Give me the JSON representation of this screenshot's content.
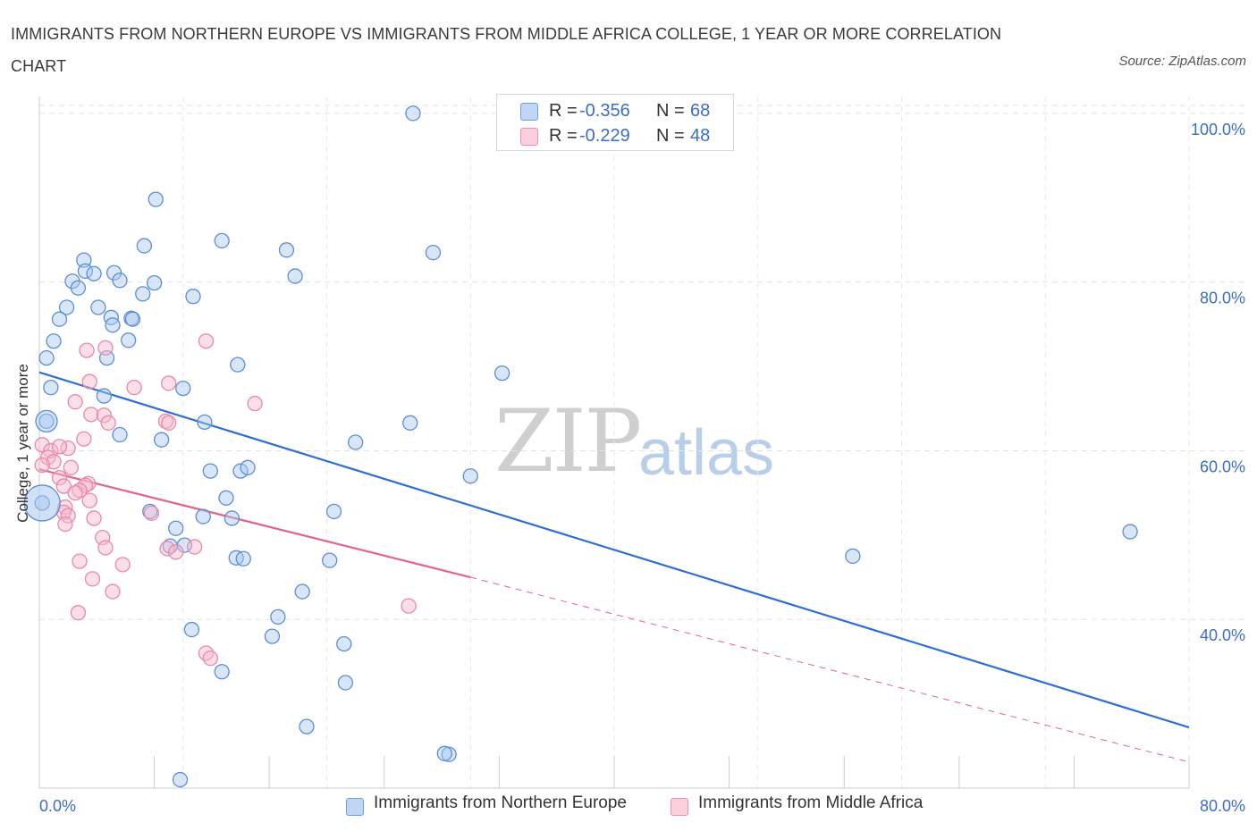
{
  "title": "IMMIGRANTS FROM NORTHERN EUROPE VS IMMIGRANTS FROM MIDDLE AFRICA COLLEGE, 1 YEAR OR MORE CORRELATION CHART",
  "source": "Source: ZipAtlas.com",
  "watermark": {
    "zip": "ZIP",
    "atlas": "atlas"
  },
  "legend": {
    "rows": [
      {
        "r_label": "R =",
        "r_value": "-0.356",
        "n_label": "N =",
        "n_value": "68",
        "color": "#a9c8f0"
      },
      {
        "r_label": "R =",
        "r_value": "-0.229",
        "n_label": "N =",
        "n_value": "48",
        "color": "#f7b8cb"
      }
    ]
  },
  "bottom_legend": {
    "series1": "Immigrants from Northern Europe",
    "series2": "Immigrants from Middle Africa"
  },
  "chart_data": {
    "type": "scatter",
    "title": "IMMIGRANTS FROM NORTHERN EUROPE VS IMMIGRANTS FROM MIDDLE AFRICA COLLEGE, 1 YEAR OR MORE CORRELATION CHART",
    "xlabel": "",
    "ylabel": "College, 1 year or more",
    "xlim": [
      0,
      80
    ],
    "ylim": [
      20,
      102
    ],
    "x_ticks": [
      {
        "value": 0,
        "label": "0.0%"
      },
      {
        "value": 80,
        "label": "80.0%"
      }
    ],
    "y_ticks": [
      {
        "value": 40,
        "label": "40.0%"
      },
      {
        "value": 60,
        "label": "60.0%"
      },
      {
        "value": 80,
        "label": "80.0%"
      },
      {
        "value": 100,
        "label": "100.0%"
      }
    ],
    "grid": true,
    "legend_position": "top-center",
    "colors": {
      "blue": "#6f9fd8",
      "blue_fill": "#a9c8f0",
      "blue_line": "#2e6fcf",
      "pink": "#ec8fad",
      "pink_fill": "#f7b8cb",
      "pink_line": "#e0648f",
      "axis_text": "#3a6fc4"
    },
    "series": [
      {
        "name": "Immigrants from Northern Europe",
        "R": -0.356,
        "N": 68,
        "points": [
          [
            26.0,
            100.0
          ],
          [
            8.1,
            89.8
          ],
          [
            12.7,
            84.9
          ],
          [
            7.3,
            84.3
          ],
          [
            17.2,
            83.8
          ],
          [
            27.4,
            83.5
          ],
          [
            3.1,
            82.6
          ],
          [
            3.2,
            81.3
          ],
          [
            5.2,
            81.1
          ],
          [
            3.8,
            81.0
          ],
          [
            17.8,
            80.7
          ],
          [
            2.3,
            80.1
          ],
          [
            5.6,
            80.2
          ],
          [
            8.0,
            79.9
          ],
          [
            2.7,
            79.3
          ],
          [
            7.2,
            78.6
          ],
          [
            10.7,
            78.3
          ],
          [
            1.9,
            77.0
          ],
          [
            4.1,
            77.0
          ],
          [
            1.4,
            75.6
          ],
          [
            5.0,
            75.8
          ],
          [
            6.4,
            75.7
          ],
          [
            6.5,
            75.6
          ],
          [
            5.1,
            74.9
          ],
          [
            1.0,
            73.0
          ],
          [
            6.2,
            73.1
          ],
          [
            4.7,
            71.0
          ],
          [
            13.8,
            70.2
          ],
          [
            32.2,
            69.2
          ],
          [
            0.8,
            67.5
          ],
          [
            10.0,
            67.4
          ],
          [
            4.5,
            66.5
          ],
          [
            0.5,
            63.5
          ],
          [
            11.5,
            63.4
          ],
          [
            25.8,
            63.3
          ],
          [
            5.6,
            61.9
          ],
          [
            8.5,
            61.3
          ],
          [
            11.9,
            57.6
          ],
          [
            14.0,
            57.6
          ],
          [
            13.0,
            54.4
          ],
          [
            0.2,
            53.8
          ],
          [
            7.7,
            52.8
          ],
          [
            20.5,
            52.8
          ],
          [
            11.4,
            52.2
          ],
          [
            13.4,
            52.0
          ],
          [
            75.9,
            50.4
          ],
          [
            9.5,
            50.8
          ],
          [
            9.1,
            48.7
          ],
          [
            10.1,
            48.8
          ],
          [
            56.6,
            47.5
          ],
          [
            13.7,
            47.3
          ],
          [
            14.2,
            47.2
          ],
          [
            20.2,
            47.0
          ],
          [
            18.3,
            43.3
          ],
          [
            16.6,
            40.3
          ],
          [
            10.6,
            38.8
          ],
          [
            16.2,
            38.0
          ],
          [
            21.2,
            37.1
          ],
          [
            12.7,
            33.8
          ],
          [
            21.3,
            32.5
          ],
          [
            18.6,
            27.3
          ],
          [
            28.5,
            24.0
          ],
          [
            28.2,
            24.1
          ],
          [
            9.8,
            21.0
          ],
          [
            0.5,
            71.0
          ],
          [
            14.5,
            58.0
          ],
          [
            22.0,
            61.0
          ],
          [
            30.0,
            57.0
          ]
        ]
      },
      {
        "name": "Immigrants from Middle Africa",
        "R": -0.229,
        "N": 48,
        "points": [
          [
            11.6,
            73.0
          ],
          [
            4.6,
            72.2
          ],
          [
            3.3,
            71.9
          ],
          [
            3.5,
            68.2
          ],
          [
            9.0,
            68.0
          ],
          [
            6.6,
            67.5
          ],
          [
            15.0,
            65.6
          ],
          [
            2.5,
            65.8
          ],
          [
            3.6,
            64.3
          ],
          [
            4.5,
            64.2
          ],
          [
            8.8,
            63.5
          ],
          [
            9.0,
            63.3
          ],
          [
            4.8,
            63.3
          ],
          [
            3.1,
            61.4
          ],
          [
            0.2,
            60.7
          ],
          [
            2.0,
            60.3
          ],
          [
            0.8,
            60.0
          ],
          [
            1.4,
            60.5
          ],
          [
            0.6,
            59.2
          ],
          [
            1.0,
            58.7
          ],
          [
            0.2,
            58.3
          ],
          [
            1.4,
            56.8
          ],
          [
            3.4,
            56.1
          ],
          [
            3.2,
            55.9
          ],
          [
            1.7,
            55.8
          ],
          [
            2.8,
            55.3
          ],
          [
            2.5,
            55.0
          ],
          [
            3.5,
            54.1
          ],
          [
            1.8,
            53.3
          ],
          [
            1.7,
            52.7
          ],
          [
            7.8,
            52.6
          ],
          [
            2.0,
            52.3
          ],
          [
            3.8,
            52.0
          ],
          [
            1.8,
            51.3
          ],
          [
            4.4,
            49.7
          ],
          [
            4.6,
            48.5
          ],
          [
            10.8,
            48.6
          ],
          [
            8.9,
            48.4
          ],
          [
            2.8,
            46.9
          ],
          [
            5.8,
            46.5
          ],
          [
            3.7,
            44.8
          ],
          [
            5.1,
            43.3
          ],
          [
            25.7,
            41.6
          ],
          [
            2.7,
            40.8
          ],
          [
            11.6,
            36.0
          ],
          [
            11.9,
            35.4
          ],
          [
            9.5,
            48.0
          ],
          [
            2.2,
            58.0
          ]
        ]
      }
    ],
    "trend_lines": [
      {
        "series": "Immigrants from Northern Europe",
        "x1": 0,
        "y1": 69.3,
        "x2": 80,
        "y2": 27.2,
        "style": "solid"
      },
      {
        "series": "Immigrants from Middle Africa",
        "x1": 0,
        "y1": 57.8,
        "x2": 30,
        "y2": 45.0,
        "style": "solid"
      },
      {
        "series": "Immigrants from Middle Africa",
        "x1": 30,
        "y1": 45.0,
        "x2": 80,
        "y2": 23.1,
        "style": "dashed"
      }
    ]
  }
}
